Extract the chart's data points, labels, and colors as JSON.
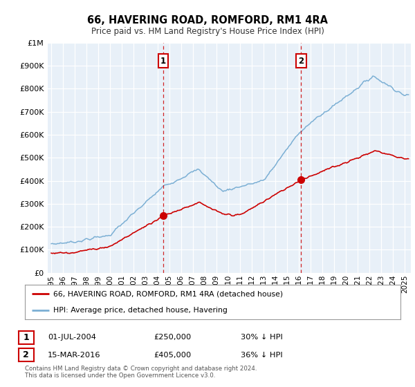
{
  "title": "66, HAVERING ROAD, ROMFORD, RM1 4RA",
  "subtitle": "Price paid vs. HM Land Registry's House Price Index (HPI)",
  "legend_line1": "66, HAVERING ROAD, ROMFORD, RM1 4RA (detached house)",
  "legend_line2": "HPI: Average price, detached house, Havering",
  "footnote1": "Contains HM Land Registry data © Crown copyright and database right 2024.",
  "footnote2": "This data is licensed under the Open Government Licence v3.0.",
  "marker1_date": 2004.5,
  "marker1_label": "1",
  "marker1_price": 250000,
  "marker1_text": "01-JUL-2004",
  "marker1_pct": "30% ↓ HPI",
  "marker2_date": 2016.2,
  "marker2_label": "2",
  "marker2_price": 405000,
  "marker2_text": "15-MAR-2016",
  "marker2_pct": "36% ↓ HPI",
  "red_color": "#cc0000",
  "blue_color": "#7bafd4",
  "bg_color": "#e8f0f8",
  "grid_color": "#ffffff",
  "ylim": [
    0,
    1000000
  ],
  "xlim_start": 1994.7,
  "xlim_end": 2025.5
}
